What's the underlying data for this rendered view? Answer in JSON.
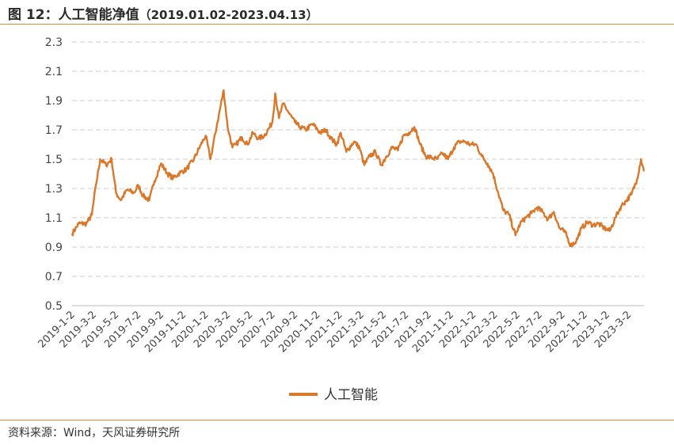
{
  "header": {
    "title": "图 12：人工智能净值",
    "date_range": "（2019.01.02-2023.04.13）"
  },
  "footer": {
    "source": "资料来源：Wind，天风证券研究所"
  },
  "colors": {
    "series": "#d9782a",
    "rule": "#e08a3c",
    "grid": "#cccccc"
  },
  "chart_data": {
    "type": "line",
    "title": "",
    "xlabel": "",
    "ylabel": "",
    "ylim": [
      0.5,
      2.3
    ],
    "yticks": [
      "0.5",
      "0.7",
      "0.9",
      "1.1",
      "1.3",
      "1.5",
      "1.7",
      "1.9",
      "2.1",
      "2.3"
    ],
    "grid": "horizontal-dashed",
    "legend_position": "bottom-center",
    "xticks": [
      "2019-1-2",
      "2019-3-2",
      "2019-5-2",
      "2019-7-2",
      "2019-9-2",
      "2019-11-2",
      "2020-1-2",
      "2020-3-2",
      "2020-5-2",
      "2020-7-2",
      "2020-9-2",
      "2020-11-2",
      "2021-1-2",
      "2021-3-2",
      "2021-5-2",
      "2021-7-2",
      "2021-9-2",
      "2021-11-2",
      "2022-1-2",
      "2022-3-2",
      "2022-5-2",
      "2022-7-2",
      "2022-9-2",
      "2022-11-2",
      "2023-1-2",
      "2023-3-2"
    ],
    "series": [
      {
        "name": "人工智能",
        "x": [
          "2019-01-02",
          "2019-01-20",
          "2019-02-10",
          "2019-02-25",
          "2019-03-08",
          "2019-03-20",
          "2019-04-05",
          "2019-04-20",
          "2019-05-02",
          "2019-05-15",
          "2019-06-01",
          "2019-06-20",
          "2019-07-02",
          "2019-07-15",
          "2019-08-01",
          "2019-08-15",
          "2019-09-02",
          "2019-09-20",
          "2019-10-05",
          "2019-10-25",
          "2019-11-10",
          "2019-12-01",
          "2019-12-20",
          "2020-01-02",
          "2020-01-15",
          "2020-02-03",
          "2020-02-20",
          "2020-03-02",
          "2020-03-15",
          "2020-03-25",
          "2020-04-10",
          "2020-04-25",
          "2020-05-10",
          "2020-05-25",
          "2020-06-10",
          "2020-06-25",
          "2020-07-02",
          "2020-07-10",
          "2020-07-20",
          "2020-08-01",
          "2020-08-15",
          "2020-09-02",
          "2020-09-15",
          "2020-10-01",
          "2020-10-20",
          "2020-11-10",
          "2020-11-25",
          "2020-12-10",
          "2020-12-25",
          "2021-01-05",
          "2021-01-20",
          "2021-02-10",
          "2021-02-25",
          "2021-03-10",
          "2021-03-25",
          "2021-04-10",
          "2021-04-25",
          "2021-05-10",
          "2021-05-25",
          "2021-06-10",
          "2021-06-25",
          "2021-07-10",
          "2021-07-25",
          "2021-08-10",
          "2021-08-25",
          "2021-09-10",
          "2021-09-25",
          "2021-10-10",
          "2021-10-25",
          "2021-11-10",
          "2021-11-25",
          "2021-12-10",
          "2021-12-25",
          "2022-01-10",
          "2022-01-25",
          "2022-02-10",
          "2022-02-25",
          "2022-03-10",
          "2022-03-25",
          "2022-04-10",
          "2022-04-27",
          "2022-05-10",
          "2022-05-25",
          "2022-06-10",
          "2022-06-25",
          "2022-07-10",
          "2022-07-25",
          "2022-08-10",
          "2022-08-25",
          "2022-09-10",
          "2022-09-25",
          "2022-10-10",
          "2022-10-25",
          "2022-11-10",
          "2022-11-25",
          "2022-12-10",
          "2022-12-25",
          "2023-01-10",
          "2023-01-25",
          "2023-02-10",
          "2023-02-25",
          "2023-03-10",
          "2023-03-25",
          "2023-04-05",
          "2023-04-13"
        ],
        "values": [
          0.99,
          1.06,
          1.06,
          1.12,
          1.32,
          1.5,
          1.46,
          1.5,
          1.27,
          1.22,
          1.29,
          1.27,
          1.32,
          1.25,
          1.22,
          1.35,
          1.47,
          1.4,
          1.37,
          1.41,
          1.43,
          1.5,
          1.6,
          1.66,
          1.5,
          1.75,
          1.97,
          1.72,
          1.58,
          1.6,
          1.65,
          1.6,
          1.68,
          1.64,
          1.66,
          1.72,
          1.75,
          1.95,
          1.78,
          1.88,
          1.82,
          1.75,
          1.72,
          1.7,
          1.74,
          1.68,
          1.7,
          1.64,
          1.6,
          1.68,
          1.55,
          1.62,
          1.58,
          1.46,
          1.52,
          1.55,
          1.46,
          1.52,
          1.58,
          1.56,
          1.66,
          1.68,
          1.72,
          1.6,
          1.52,
          1.51,
          1.5,
          1.54,
          1.5,
          1.58,
          1.62,
          1.62,
          1.6,
          1.6,
          1.52,
          1.47,
          1.4,
          1.28,
          1.15,
          1.12,
          0.98,
          1.06,
          1.1,
          1.13,
          1.17,
          1.14,
          1.09,
          1.14,
          1.03,
          1.0,
          0.91,
          0.94,
          1.03,
          1.07,
          1.05,
          1.06,
          1.03,
          1.01,
          1.1,
          1.18,
          1.22,
          1.26,
          1.36,
          1.5,
          1.42
        ]
      }
    ]
  }
}
